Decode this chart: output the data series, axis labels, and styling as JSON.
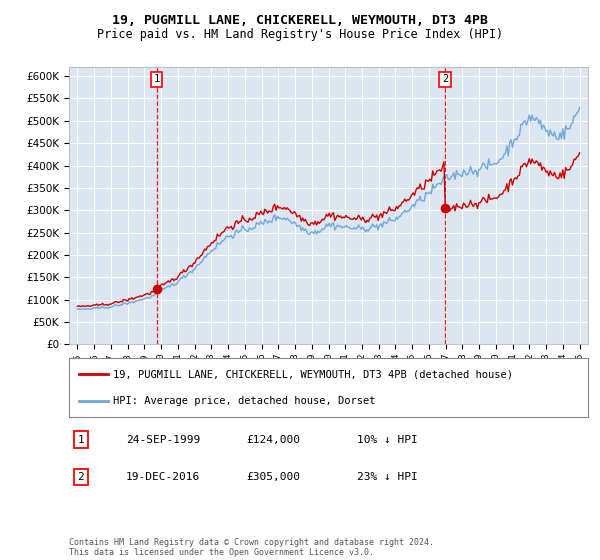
{
  "title": "19, PUGMILL LANE, CHICKERELL, WEYMOUTH, DT3 4PB",
  "subtitle": "Price paid vs. HM Land Registry's House Price Index (HPI)",
  "legend_line1": "19, PUGMILL LANE, CHICKERELL, WEYMOUTH, DT3 4PB (detached house)",
  "legend_line2": "HPI: Average price, detached house, Dorset",
  "footnote": "Contains HM Land Registry data © Crown copyright and database right 2024.\nThis data is licensed under the Open Government Licence v3.0.",
  "sale1_label": "1",
  "sale1_date": "24-SEP-1999",
  "sale1_price": "£124,000",
  "sale1_hpi": "10% ↓ HPI",
  "sale1_year": 1999.73,
  "sale1_value": 124000,
  "sale2_label": "2",
  "sale2_date": "19-DEC-2016",
  "sale2_price": "£305,000",
  "sale2_hpi": "23% ↓ HPI",
  "sale2_year": 2016.96,
  "sale2_value": 305000,
  "hpi_color": "#6fa8dc",
  "sale_color": "#cc0000",
  "plot_bg": "#dce6f1",
  "ylim": [
    0,
    620000
  ],
  "yticks": [
    0,
    50000,
    100000,
    150000,
    200000,
    250000,
    300000,
    350000,
    400000,
    450000,
    500000,
    550000,
    600000
  ],
  "xlim_start": 1994.5,
  "xlim_end": 2025.5
}
